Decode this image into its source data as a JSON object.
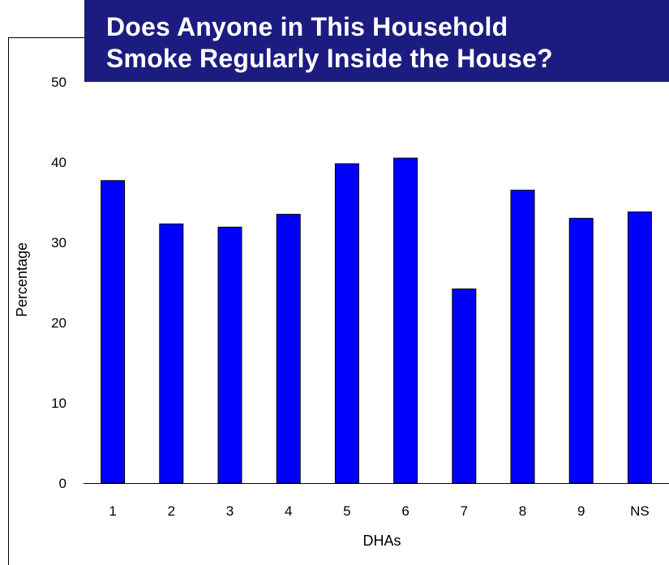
{
  "title": {
    "line1": "Does Anyone in This Household",
    "line2": "Smoke Regularly Inside the House?"
  },
  "chart_data": {
    "type": "bar",
    "title": "Does Anyone in This Household Smoke Regularly Inside the House?",
    "xlabel": "DHAs",
    "ylabel": "Percentage",
    "categories": [
      "1",
      "2",
      "3",
      "4",
      "5",
      "6",
      "7",
      "8",
      "9",
      "NS"
    ],
    "values": [
      37.7,
      32.3,
      31.9,
      33.5,
      39.8,
      40.5,
      24.2,
      36.5,
      33.0,
      33.8
    ],
    "ylim": [
      0,
      50
    ],
    "yticks": [
      0,
      10,
      20,
      30,
      40,
      50
    ],
    "grid": false,
    "legend": "none",
    "bar_color": "#0000ff",
    "title_background": "#1c1c80"
  }
}
